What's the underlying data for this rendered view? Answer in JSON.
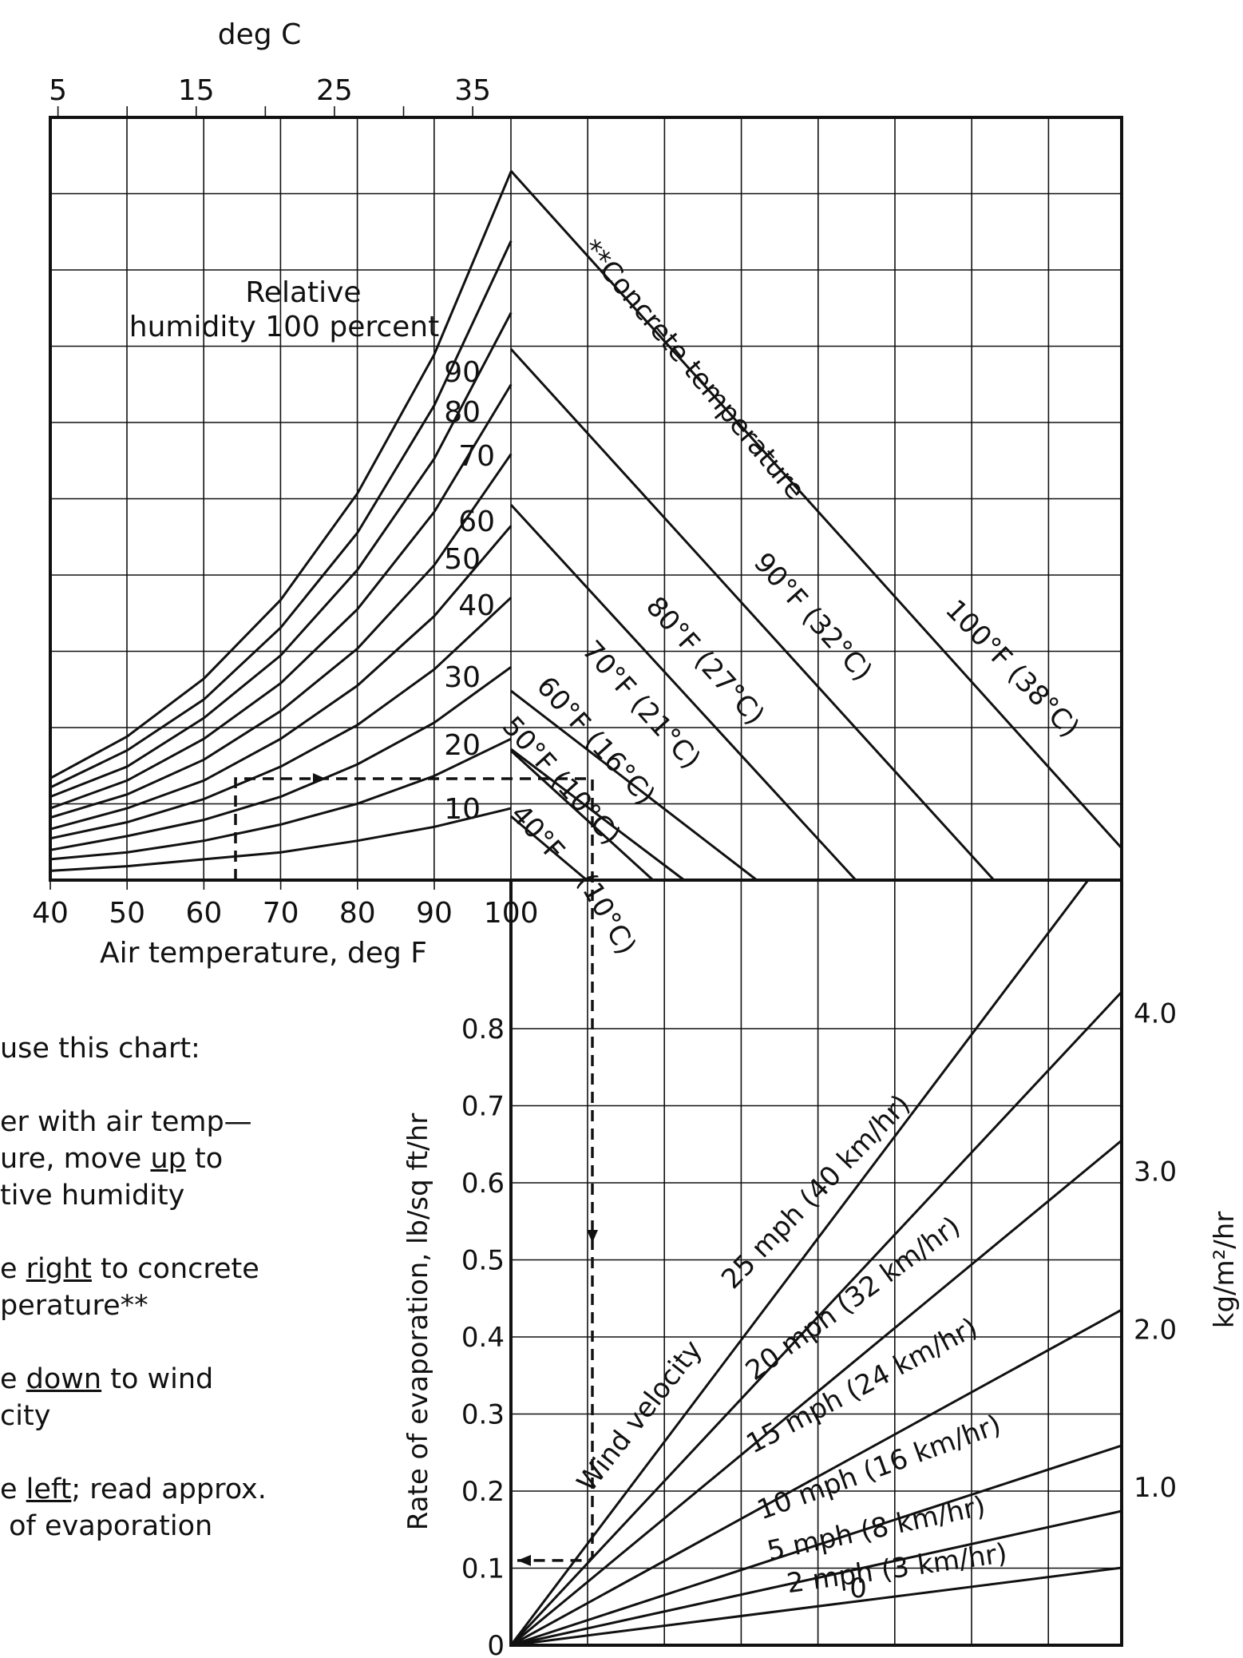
{
  "chart_data": [
    {
      "type": "line",
      "title": "",
      "top_axis_label": "deg C",
      "top_axis_ticks": [
        "5",
        "15",
        "25",
        "35"
      ],
      "xlabel": "Air temperature, deg F",
      "x_ticks": [
        "40",
        "50",
        "60",
        "70",
        "80",
        "90",
        "100"
      ],
      "xlim": [
        40,
        100
      ],
      "curve_group_label": "Relative humidity 100 percent",
      "series": [
        {
          "name": "100",
          "x": [
            40,
            50,
            60,
            70,
            80,
            90,
            100
          ],
          "y": [
            0.44,
            0.62,
            0.87,
            1.21,
            1.67,
            2.27,
            3.06
          ]
        },
        {
          "name": "90",
          "x": [
            40,
            50,
            60,
            70,
            80,
            90,
            100
          ],
          "y": [
            0.4,
            0.56,
            0.78,
            1.09,
            1.5,
            2.05,
            2.76
          ]
        },
        {
          "name": "80",
          "x": [
            40,
            50,
            60,
            70,
            80,
            90,
            100
          ],
          "y": [
            0.36,
            0.49,
            0.7,
            0.97,
            1.34,
            1.82,
            2.45
          ]
        },
        {
          "name": "70",
          "x": [
            40,
            50,
            60,
            70,
            80,
            90,
            100
          ],
          "y": [
            0.31,
            0.43,
            0.61,
            0.85,
            1.17,
            1.59,
            2.14
          ]
        },
        {
          "name": "60",
          "x": [
            40,
            50,
            60,
            70,
            80,
            90,
            100
          ],
          "y": [
            0.27,
            0.37,
            0.52,
            0.73,
            1.0,
            1.36,
            1.84
          ]
        },
        {
          "name": "50",
          "x": [
            40,
            50,
            60,
            70,
            80,
            90,
            100
          ],
          "y": [
            0.22,
            0.31,
            0.43,
            0.61,
            0.84,
            1.14,
            1.53
          ]
        },
        {
          "name": "40",
          "x": [
            40,
            50,
            60,
            70,
            80,
            90,
            100
          ],
          "y": [
            0.18,
            0.25,
            0.35,
            0.49,
            0.67,
            0.91,
            1.22
          ]
        },
        {
          "name": "30",
          "x": [
            40,
            50,
            60,
            70,
            80,
            90,
            100
          ],
          "y": [
            0.13,
            0.19,
            0.26,
            0.36,
            0.5,
            0.68,
            0.92
          ]
        },
        {
          "name": "20",
          "x": [
            40,
            50,
            60,
            70,
            80,
            90,
            100
          ],
          "y": [
            0.09,
            0.12,
            0.17,
            0.24,
            0.33,
            0.45,
            0.61
          ]
        },
        {
          "name": "10",
          "x": [
            40,
            50,
            60,
            70,
            80,
            90,
            100
          ],
          "y": [
            0.04,
            0.06,
            0.09,
            0.12,
            0.17,
            0.23,
            0.31
          ]
        }
      ],
      "concrete_temperature_label": "**Concrete temperature",
      "concrete_lines": [
        {
          "name": "100°F (38°C)",
          "start": [
            100,
            3.06
          ],
          "end": [
            180,
            0.12
          ]
        },
        {
          "name": "90°F (32°C)",
          "start": [
            100,
            2.2
          ],
          "end": [
            162,
            0
          ]
        },
        {
          "name": "80°F (27°C)",
          "start": [
            100,
            1.6
          ],
          "end": [
            145,
            0
          ]
        },
        {
          "name": "70°F (21°C)",
          "start": [
            100,
            1.22
          ],
          "end": [
            132,
            0
          ]
        },
        {
          "name": "60°F (16°C)",
          "start": [
            100,
            0.88
          ],
          "end": [
            122,
            0
          ]
        },
        {
          "name": "50°F (10°C)",
          "start": [
            100,
            0.61
          ],
          "end": [
            114,
            0
          ]
        },
        {
          "name": "40°F",
          "start": [
            100,
            0.31
          ],
          "end": [
            109,
            0
          ]
        }
      ],
      "concrete_40_note": "(10°C)",
      "grid": true
    },
    {
      "type": "line",
      "title": "",
      "ylabel": "Rate of evaporation, lb/sq ft/hr",
      "y_ticks": [
        "0",
        "0.1",
        "0.2",
        "0.3",
        "0.4",
        "0.5",
        "0.6",
        "0.7",
        "0.8"
      ],
      "ylim": [
        0,
        0.9
      ],
      "right_axis_label": "kg/m²/hr",
      "right_ticks": [
        "1.0",
        "2.0",
        "3.0",
        "4.0"
      ],
      "right_tick_values": [
        0.205,
        0.41,
        0.615,
        0.82
      ],
      "wind_label": "Wind velocity",
      "series": [
        {
          "name": "25 mph (40 km/hr)",
          "x": [
            0,
            150
          ],
          "y": [
            0,
            0.96
          ]
        },
        {
          "name": "20 mph (32 km/hr)",
          "x": [
            0,
            160
          ],
          "y": [
            0,
            0.85
          ]
        },
        {
          "name": "15 mph (24 km/hr)",
          "x": [
            0,
            160
          ],
          "y": [
            0,
            0.67
          ]
        },
        {
          "name": "10 mph (16 km/hr)",
          "x": [
            0,
            160
          ],
          "y": [
            0,
            0.47
          ]
        },
        {
          "name": "5 mph (8 km/hr)",
          "x": [
            0,
            160
          ],
          "y": [
            0,
            0.3
          ]
        },
        {
          "name": "2 mph (3 km/hr)",
          "x": [
            0,
            160
          ],
          "y": [
            0,
            0.2
          ]
        },
        {
          "name": "0",
          "x": [
            0,
            160
          ],
          "y": [
            0,
            0.11
          ]
        }
      ],
      "example_result": 0.11,
      "grid": true
    }
  ],
  "instructions": {
    "heading": "use this chart:",
    "step1_a": "er with air temp—",
    "step1_b1": "ure, move ",
    "step1_b_u": "up",
    "step1_b2": " to",
    "step1_c": "tive humidity",
    "step2_a1": "e ",
    "step2_a_u": "right",
    "step2_a2": " to concrete",
    "step2_b": "perature**",
    "step3_a1": "e ",
    "step3_a_u": "down",
    "step3_a2": " to wind",
    "step3_b": "city",
    "step4_a1": "e ",
    "step4_a_u": "left",
    "step4_a2": "; read approx.",
    "step4_b": " of evaporation"
  }
}
